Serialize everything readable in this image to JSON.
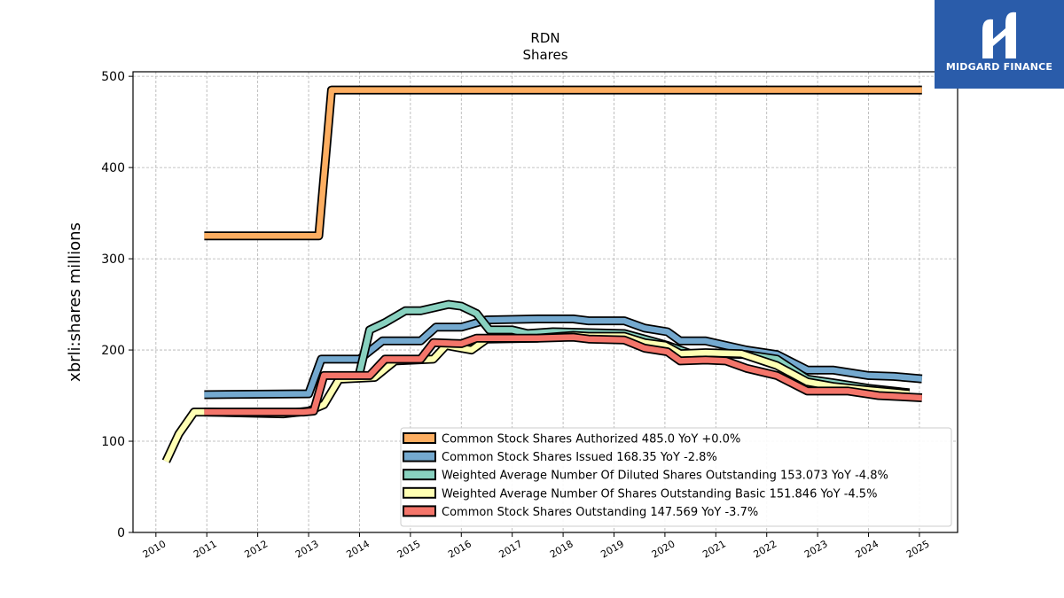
{
  "brand": {
    "name": "MIDGARD FINANCE",
    "logo_icon": "midgard-logo-icon",
    "color": "#2a5caa"
  },
  "chart_data": {
    "type": "line",
    "title": "RDN",
    "subtitle": "Shares",
    "xlabel": "",
    "ylabel": "xbrli:shares millions",
    "xlim": [
      2009.55,
      2025.75
    ],
    "ylim": [
      0,
      505
    ],
    "x_ticks": [
      "2010",
      "2011",
      "2012",
      "2013",
      "2014",
      "2015",
      "2016",
      "2017",
      "2018",
      "2019",
      "2020",
      "2021",
      "2022",
      "2023",
      "2024",
      "2025"
    ],
    "y_ticks": [
      "0",
      "100",
      "200",
      "300",
      "400",
      "500"
    ],
    "grid": true,
    "legend_position": "bottom-right",
    "series": [
      {
        "name": "Common Stock Shares Authorized  485.0 YoY +0.0%",
        "color": "#fdae61",
        "points": [
          [
            2010.95,
            325
          ],
          [
            2013.2,
            325
          ],
          [
            2013.45,
            485
          ],
          [
            2025.05,
            485
          ]
        ]
      },
      {
        "name": "Common Stock Shares Issued  168.35 YoY -2.8%",
        "color": "#74a9cf",
        "points": [
          [
            2010.95,
            151
          ],
          [
            2013.0,
            152
          ],
          [
            2013.25,
            190
          ],
          [
            2014.0,
            190
          ],
          [
            2014.45,
            210
          ],
          [
            2015.2,
            210
          ],
          [
            2015.5,
            225
          ],
          [
            2016.0,
            225
          ],
          [
            2016.5,
            233
          ],
          [
            2017.5,
            234
          ],
          [
            2018.2,
            234
          ],
          [
            2018.5,
            232
          ],
          [
            2019.2,
            232
          ],
          [
            2019.6,
            224
          ],
          [
            2020.05,
            220
          ],
          [
            2020.3,
            210
          ],
          [
            2020.8,
            210
          ],
          [
            2021.6,
            200
          ],
          [
            2022.2,
            195
          ],
          [
            2022.8,
            178
          ],
          [
            2023.3,
            178
          ],
          [
            2024.0,
            172
          ],
          [
            2024.5,
            171
          ],
          [
            2025.05,
            168.35
          ]
        ]
      },
      {
        "name": "Weighted Average Number Of Diluted Shares Outstanding  153.073 YoY -4.8%",
        "color": "#88d1bf",
        "points": [
          [
            2014.0,
            175
          ],
          [
            2014.2,
            222
          ],
          [
            2014.5,
            230
          ],
          [
            2014.9,
            243
          ],
          [
            2015.2,
            243
          ],
          [
            2015.75,
            250
          ],
          [
            2016.0,
            248
          ],
          [
            2016.3,
            240
          ],
          [
            2016.55,
            222
          ],
          [
            2017.0,
            222
          ],
          [
            2017.3,
            218
          ],
          [
            2017.8,
            220
          ],
          [
            2018.5,
            219
          ],
          [
            2019.2,
            218
          ],
          [
            2019.6,
            212
          ],
          [
            2020.05,
            205
          ],
          [
            2020.5,
            196
          ],
          [
            2021.0,
            196
          ],
          [
            2021.6,
            195
          ],
          [
            2022.2,
            190
          ],
          [
            2022.8,
            168
          ],
          [
            2023.3,
            164
          ],
          [
            2024.0,
            158
          ],
          [
            2024.8,
            153.073
          ]
        ]
      },
      {
        "name": "Weighted Average Number Of Shares Outstanding Basic  151.846 YoY -4.5%",
        "color": "#ffffb3",
        "points": [
          [
            2010.2,
            78
          ],
          [
            2010.45,
            108
          ],
          [
            2010.75,
            132
          ],
          [
            2011.0,
            132
          ],
          [
            2012.5,
            130
          ],
          [
            2013.0,
            133
          ],
          [
            2013.3,
            140
          ],
          [
            2013.6,
            168
          ],
          [
            2014.3,
            170
          ],
          [
            2014.7,
            188
          ],
          [
            2015.45,
            190
          ],
          [
            2015.7,
            205
          ],
          [
            2016.2,
            200
          ],
          [
            2016.5,
            212
          ],
          [
            2017.5,
            213
          ],
          [
            2018.2,
            216
          ],
          [
            2018.5,
            215
          ],
          [
            2019.2,
            215
          ],
          [
            2019.6,
            208
          ],
          [
            2020.0,
            205
          ],
          [
            2020.3,
            196
          ],
          [
            2020.8,
            197
          ],
          [
            2021.5,
            196
          ],
          [
            2022.2,
            183
          ],
          [
            2022.8,
            165
          ],
          [
            2023.3,
            160
          ],
          [
            2024.0,
            156
          ],
          [
            2024.8,
            151.846
          ]
        ]
      },
      {
        "name": "Common Stock Shares Outstanding  147.569 YoY -3.7%",
        "color": "#f4756a",
        "points": [
          [
            2010.95,
            132
          ],
          [
            2012.9,
            132
          ],
          [
            2013.1,
            133
          ],
          [
            2013.3,
            172
          ],
          [
            2014.2,
            172
          ],
          [
            2014.5,
            190
          ],
          [
            2015.2,
            190
          ],
          [
            2015.45,
            208
          ],
          [
            2016.0,
            207
          ],
          [
            2016.3,
            213
          ],
          [
            2017.5,
            213
          ],
          [
            2018.2,
            214
          ],
          [
            2018.5,
            212
          ],
          [
            2019.2,
            211
          ],
          [
            2019.6,
            202
          ],
          [
            2020.05,
            198
          ],
          [
            2020.3,
            188
          ],
          [
            2020.8,
            189
          ],
          [
            2021.2,
            188
          ],
          [
            2021.6,
            180
          ],
          [
            2022.2,
            172
          ],
          [
            2022.8,
            155
          ],
          [
            2023.3,
            155
          ],
          [
            2023.6,
            155
          ],
          [
            2024.2,
            150
          ],
          [
            2024.6,
            149
          ],
          [
            2025.05,
            147.569
          ]
        ]
      }
    ]
  }
}
